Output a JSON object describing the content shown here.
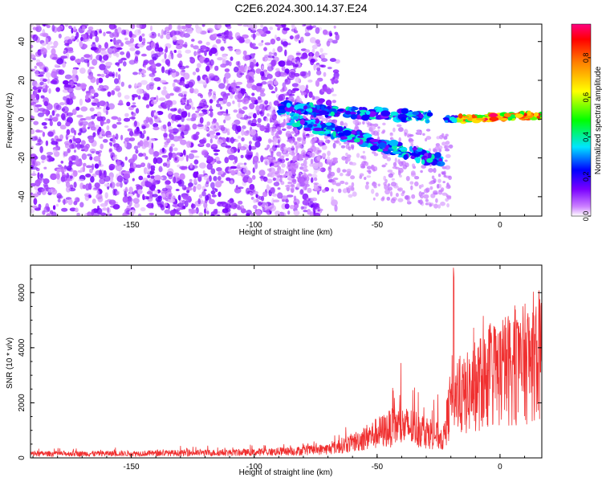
{
  "figure_title": "C2E6.2024.300.14.37.E24",
  "chart_data": [
    {
      "type": "heatmap",
      "title": "C2E6.2024.300.14.37.E24",
      "xlabel": "Height of straight line (km)",
      "ylabel": "Frequency (Hz)",
      "xlim": [
        -191,
        17
      ],
      "ylim": [
        -50,
        49
      ],
      "x_ticks": [
        -150,
        -100,
        -50,
        0
      ],
      "y_ticks": [
        -40,
        -20,
        0,
        20,
        40
      ],
      "colorbar": {
        "label": "Normalized spectral amplitude",
        "range": [
          0,
          0.97
        ],
        "ticks": [
          0.0,
          0.2,
          0.4,
          0.6,
          0.8
        ],
        "colormap": [
          "#ffffff",
          "#cc80ff",
          "#7a00ff",
          "#0000ff",
          "#00e5ff",
          "#00ff00",
          "#ffff00",
          "#ff8000",
          "#ff0000",
          "#ff0080"
        ]
      },
      "features": [
        {
          "name": "broadband noise",
          "x_range": [
            -191,
            -72
          ],
          "freq_range": [
            -50,
            49
          ],
          "amplitude": 0.1
        },
        {
          "name": "upper band",
          "x_start": -90,
          "x_end": -28,
          "freq_start": 6,
          "freq_end": 1,
          "amplitude": 0.3
        },
        {
          "name": "lower band",
          "x_start": -85,
          "x_end": -24,
          "freq_start": 0,
          "freq_end": -22,
          "amplitude": 0.3
        },
        {
          "name": "stable tone",
          "x_start": -22,
          "x_end": 17,
          "freq_start": 0,
          "freq_end": 2,
          "amplitude": 0.9
        }
      ]
    },
    {
      "type": "line",
      "xlabel": "Height of straight line (km)",
      "ylabel": "SNR (10 * v/v)",
      "xlim": [
        -191,
        17
      ],
      "ylim": [
        0,
        7000
      ],
      "x_ticks": [
        -150,
        -100,
        -50,
        0
      ],
      "y_ticks": [
        0,
        2000,
        4000,
        6000
      ],
      "line_color": "#f03030",
      "envelope": {
        "x": [
          -191,
          -150,
          -100,
          -80,
          -70,
          -60,
          -50,
          -42,
          -35,
          -28,
          -23,
          -19,
          -17,
          -15,
          -10,
          -5,
          0,
          5,
          7,
          10,
          15,
          17
        ],
        "mean": [
          150,
          160,
          200,
          260,
          320,
          550,
          900,
          1150,
          1100,
          900,
          700,
          2500,
          2300,
          2200,
          2600,
          2900,
          3100,
          3300,
          3200,
          3400,
          3800,
          3600
        ],
        "peak": [
          350,
          400,
          500,
          550,
          700,
          1400,
          2600,
          3500,
          3300,
          2700,
          2000,
          7000,
          3900,
          4300,
          4900,
          5400,
          4600,
          6200,
          4900,
          5000,
          4800,
          4200
        ]
      }
    }
  ]
}
